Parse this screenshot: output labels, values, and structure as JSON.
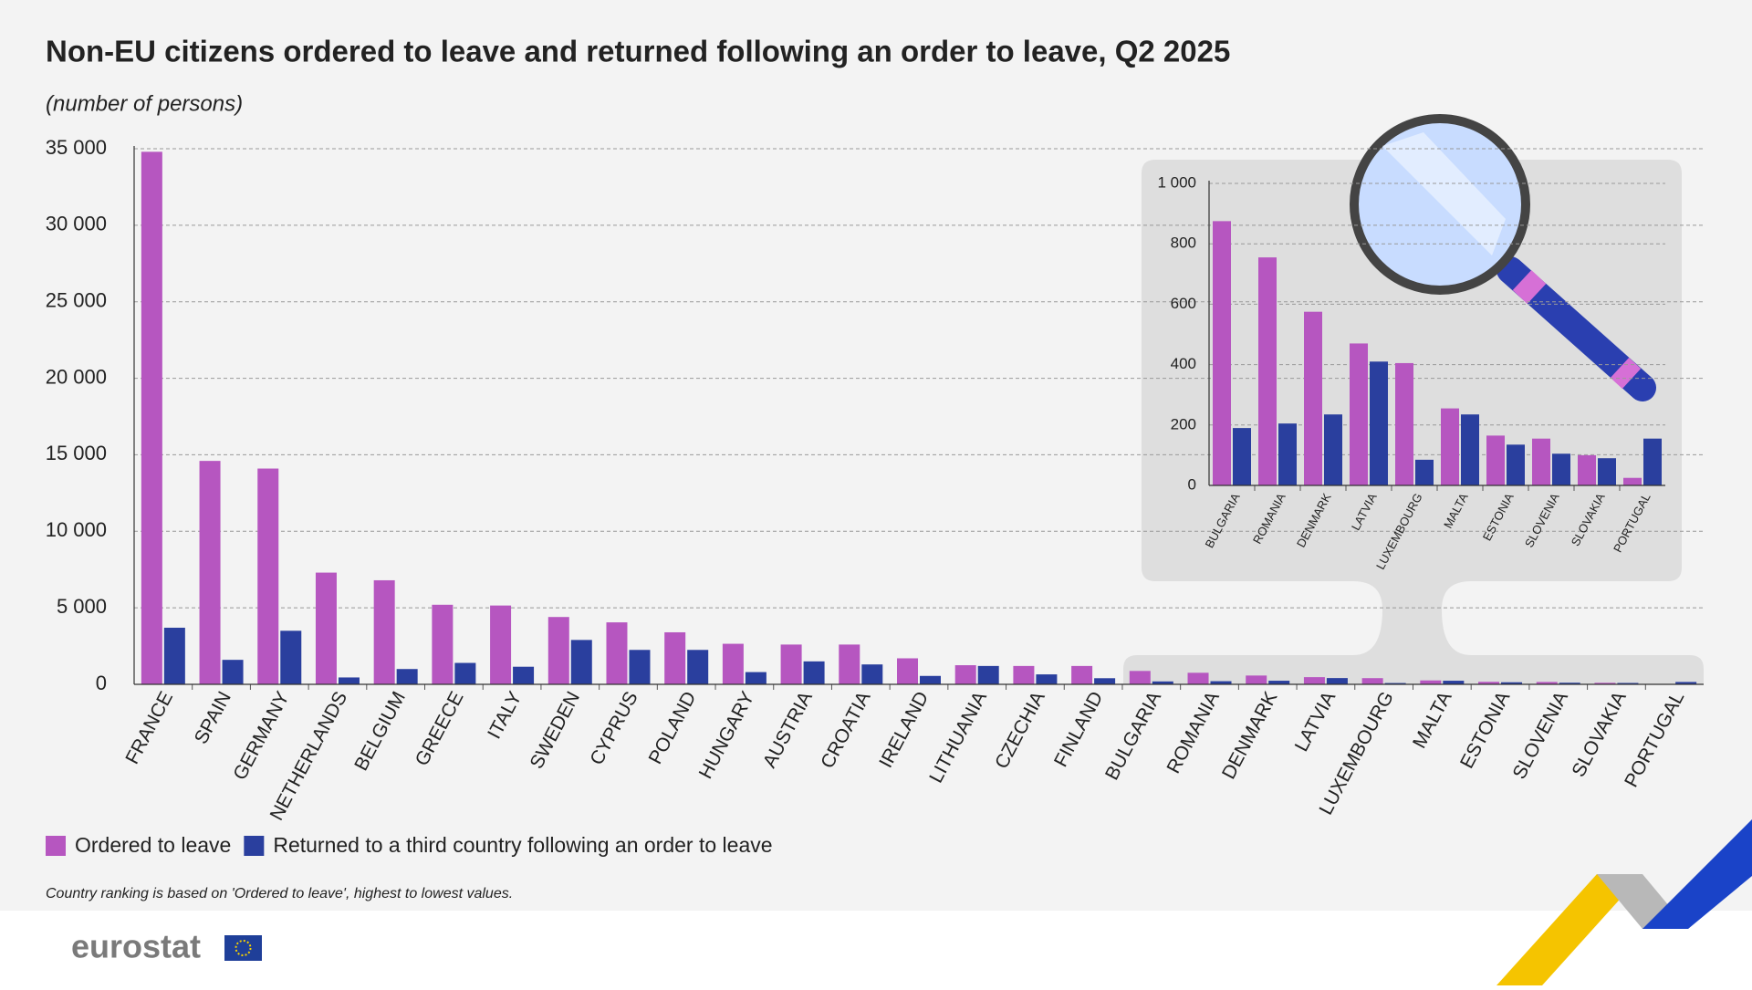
{
  "chart_data": [
    {
      "type": "bar",
      "title": "Non-EU citizens ordered to leave and returned following an order to leave, Q2 2025",
      "subtitle": "(number of persons)",
      "note": "Country ranking is based on 'Ordered to leave', highest to lowest values.",
      "categories": [
        "FRANCE",
        "SPAIN",
        "GERMANY",
        "NETHERLANDS",
        "BELGIUM",
        "GREECE",
        "ITALY",
        "SWEDEN",
        "CYPRUS",
        "POLAND",
        "HUNGARY",
        "AUSTRIA",
        "CROATIA",
        "IRELAND",
        "LITHUANIA",
        "CZECHIA",
        "FINLAND",
        "BULGARIA",
        "ROMANIA",
        "DENMARK",
        "LATVIA",
        "LUXEMBOURG",
        "MALTA",
        "ESTONIA",
        "SLOVENIA",
        "SLOVAKIA",
        "PORTUGAL"
      ],
      "series": [
        {
          "name": "Ordered to leave",
          "color": "#b656c0",
          "values": [
            34800,
            14600,
            14100,
            7300,
            6800,
            5200,
            5150,
            4400,
            4050,
            3400,
            2650,
            2600,
            2600,
            1700,
            1250,
            1200,
            1200,
            875,
            755,
            575,
            470,
            405,
            255,
            165,
            155,
            100,
            25
          ]
        },
        {
          "name": "Returned to a third country following an order to leave",
          "color": "#2a3f9e",
          "values": [
            3700,
            1600,
            3500,
            450,
            1000,
            1400,
            1150,
            2900,
            2250,
            2250,
            800,
            1500,
            1300,
            550,
            1200,
            650,
            400,
            190,
            205,
            235,
            410,
            85,
            235,
            135,
            105,
            90,
            155
          ]
        }
      ],
      "ylim": [
        0,
        35000
      ],
      "yticks": [
        0,
        {
          "value": 5000,
          "label": "5 000"
        },
        {
          "value": 10000,
          "label": "10 000"
        },
        {
          "value": 15000,
          "label": "15 000"
        },
        {
          "value": 20000,
          "label": "20 000"
        },
        {
          "value": 25000,
          "label": "25 000"
        },
        {
          "value": 30000,
          "label": "30 000"
        },
        {
          "value": 35000,
          "label": "35 000"
        }
      ],
      "grid": true
    },
    {
      "type": "bar",
      "categories": [
        "BULGARIA",
        "ROMANIA",
        "DENMARK",
        "LATVIA",
        "LUXEMBOURG",
        "MALTA",
        "ESTONIA",
        "SLOVENIA",
        "SLOVAKIA",
        "PORTUGAL"
      ],
      "series": [
        {
          "color": "#b656c0",
          "values": [
            875,
            755,
            575,
            470,
            405,
            255,
            165,
            155,
            100,
            25
          ]
        },
        {
          "color": "#2a3f9e",
          "values": [
            190,
            205,
            235,
            410,
            85,
            235,
            135,
            105,
            90,
            155
          ]
        }
      ],
      "ylim": [
        0,
        1000
      ],
      "yticks": [
        0,
        200,
        400,
        600,
        800,
        {
          "value": 1000,
          "label": "1 000"
        }
      ],
      "grid": true
    }
  ],
  "logo": "eurostat"
}
